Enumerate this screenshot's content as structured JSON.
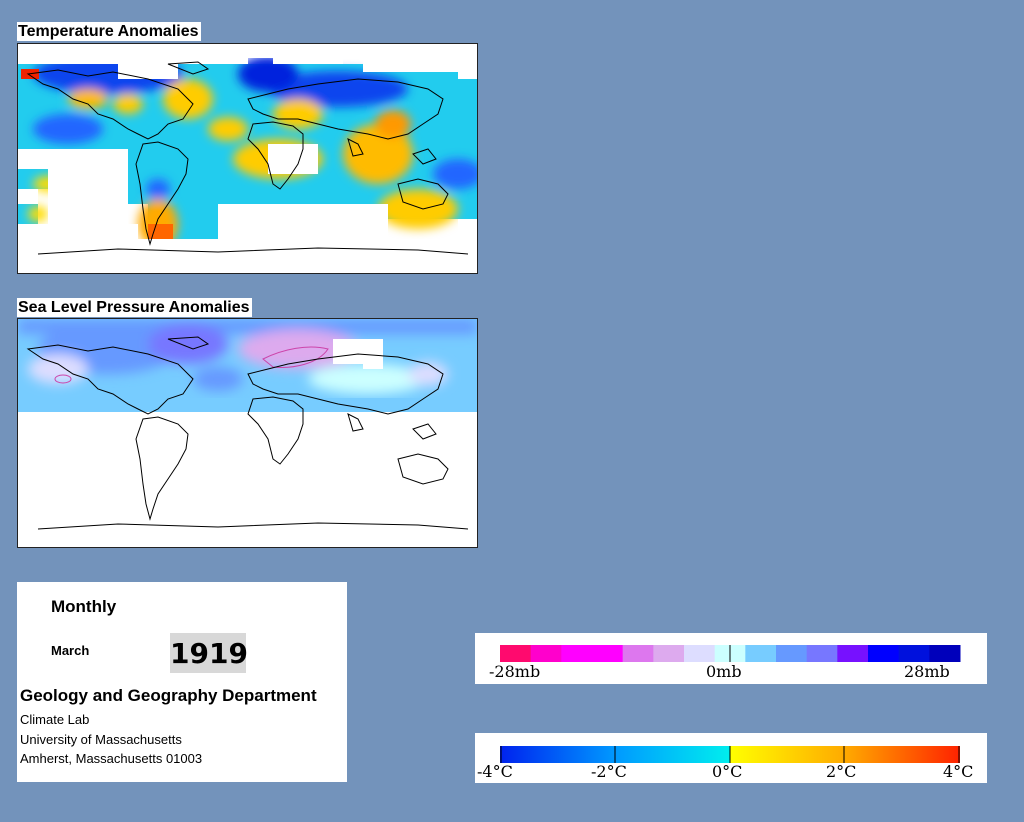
{
  "temperature_panel": {
    "title": "Temperature Anomalies"
  },
  "pressure_panel": {
    "title": "Sea Level Pressure Anomalies"
  },
  "info": {
    "mode": "Monthly",
    "month": "March",
    "year": "1919",
    "department": "Geology and Geography Department",
    "line1": "Climate Lab",
    "line2": "University of Massachusetts",
    "line3": "Amherst, Massachusetts 01003"
  },
  "pressure_legend": {
    "colors": [
      "#ff0a6e",
      "#ff00cc",
      "#ff00ff",
      "#ff00ff",
      "#dd77ee",
      "#ddaaee",
      "#ddddff",
      "#ccffff",
      "#77ccff",
      "#6699ff",
      "#7777ff",
      "#7711ff",
      "#0000ff",
      "#0011dd",
      "#0000bb"
    ],
    "labels": [
      "-28mb",
      "0mb",
      "28mb"
    ]
  },
  "temperature_legend": {
    "colors": [
      "#0033ff",
      "#0088ff",
      "#00ccff",
      "#ffee00",
      "#ff9900",
      "#ff3300"
    ],
    "labels": [
      "-4°C",
      "-2°C",
      "0°C",
      "2°C",
      "4°C"
    ]
  },
  "colors": {
    "background": "#7393bb",
    "missing": "#ffffff"
  }
}
